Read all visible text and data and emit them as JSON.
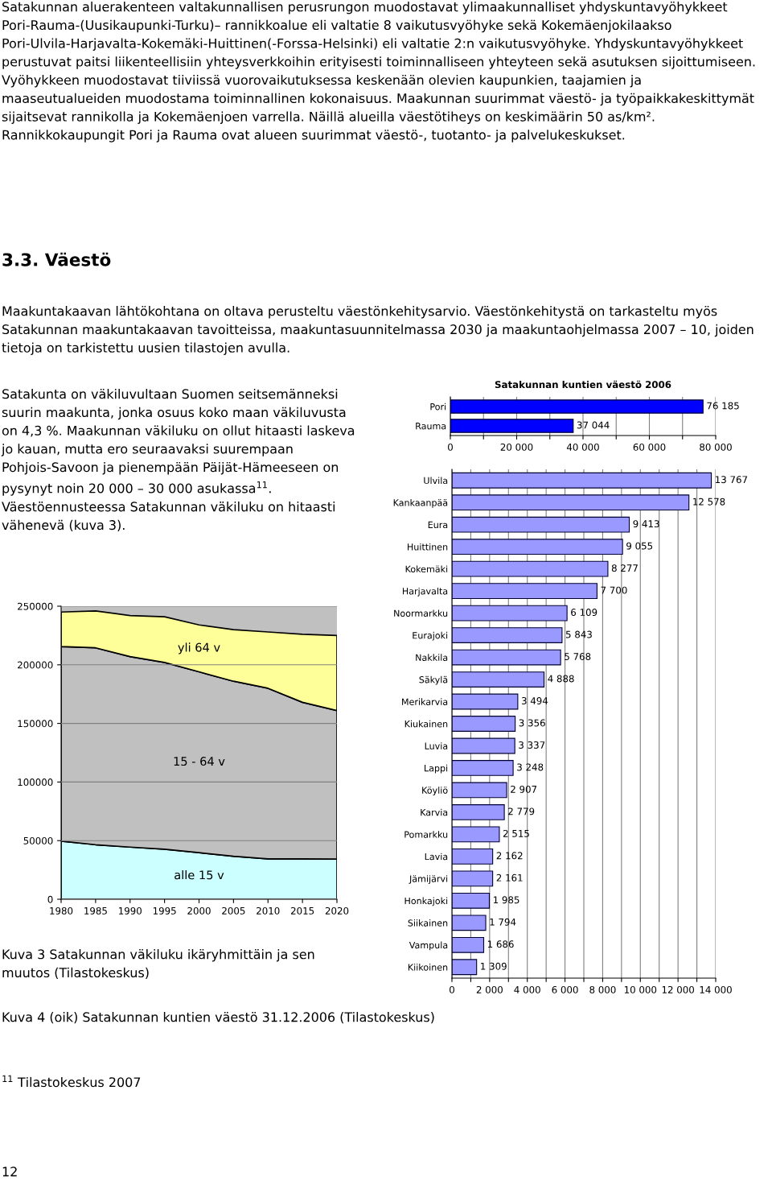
{
  "chart_data": [
    {
      "type": "other",
      "title": "3.3. Väestö",
      "annotations": [
        "Satakunnan aluerakenteen valtakunnallisen perusrungon muodostavat ylimaakunnalliset yhdyskuntavyöhykkeet Pori-Rauma-(Uusikaupunki-Turku)– rannikkoalue eli valtatie 8 vaikutusvyöhyke sekä Kokemäenjokilaakso Pori-Ulvila-Harjavalta-Kokemäki-Huittinen(-Forssa-Helsinki) eli valtatie 2:n vaikutusvyöhyke. Yhdyskuntavyöhykkeet perustuvat paitsi liikenteellisiin yhteysverkkoihin erityisesti toiminnalliseen yhteyteen sekä asutuksen sijoittumiseen. Vyöhykkeen muodostavat tiiviissä vuorovaikutuksessa keskenään olevien kaupunkien, taajamien ja maaseutualueiden muodostama toiminnallinen kokonaisuus. Maakunnan suurimmat väestö- ja työpaikkakeskittymät sijaitsevat rannikolla ja Kokemäenjoen varrella. Näillä alueilla väestötiheys on keskimäärin 50 as/km². Rannikkokaupungit Pori ja Rauma ovat alueen suurimmat väestö-, tuotanto- ja palvelukeskukset.",
        "Maakuntakaavan lähtökohtana on oltava perusteltu väestönkehitysarvio. Väestönkehitystä on tarkasteltu myös Satakunnan maakuntakaavan tavoitteissa, maakuntasuunnitelmassa 2030 ja maakuntaohjelmassa 2007 – 10, joiden tietoja on tarkistettu uusien tilastojen avulla.",
        "Satakunta on väkiluvultaan Suomen seitsemänneksi suurin maakunta, jonka osuus koko maan väkiluvusta on 4,3 %. Maakunnan väkiluku on ollut hitaasti laskeva jo kauan, mutta ero seuraavaksi suurempaan Pohjois-Savoon ja pienempään Päijät-Hämeeseen on pysynyt noin 20 000 – 30 000 asukassa$^{11}$. Väestöennusteessa Satakunnan väkiluku on hitaasti vähenevä (kuva 3).",
        "$^{11}$ Tilastokeskus 2007",
        "12"
      ]
    },
    {
      "type": "area",
      "stacked": true,
      "x": [
        1980,
        1985,
        1990,
        1995,
        2000,
        2005,
        2010,
        2015,
        2020
      ],
      "series": [
        {
          "name": "alle 15 v",
          "color": "#ccffff",
          "values": [
            49500,
            46500,
            44500,
            42700,
            39700,
            36700,
            34400,
            34400,
            34200
          ]
        },
        {
          "name": "15 - 64 v",
          "color": "#c0c0c0",
          "values": [
            166100,
            168000,
            162500,
            159300,
            154300,
            149300,
            145600,
            133600,
            126800
          ]
        },
        {
          "name": "yli 64 v",
          "color": "#ffff99",
          "values": [
            29400,
            31500,
            35000,
            39000,
            40000,
            44000,
            48000,
            58000,
            64000
          ]
        }
      ],
      "xlim": [
        1980,
        2020
      ],
      "xticks": [
        1980,
        1985,
        1990,
        1995,
        2000,
        2005,
        2010,
        2015,
        2020
      ],
      "ylim": [
        0,
        250000
      ],
      "yticks": [
        0,
        50000,
        100000,
        150000,
        200000,
        250000
      ],
      "grid": "y",
      "annotations": [
        "Kuva 3 Satakunnan väkiluku ikäryhmittäin ja sen muutos (Tilastokeskus)"
      ]
    },
    {
      "type": "bar",
      "orientation": "horizontal",
      "title": "Satakunnan kuntien väestö 2006",
      "categories": [
        "Pori",
        "Rauma"
      ],
      "values": [
        76185,
        37044
      ],
      "color": "#0000ff",
      "value_labels": [
        "76 185",
        "37 044"
      ],
      "xlim": [
        0,
        80000
      ],
      "xticks": [
        0,
        {
          "value": 10000,
          "label": null
        },
        {
          "value": 20000,
          "label": "20 000"
        },
        {
          "value": 30000,
          "label": null
        },
        {
          "value": 40000,
          "label": "40 000"
        },
        {
          "value": 50000,
          "label": null
        },
        {
          "value": 60000,
          "label": "60 000"
        },
        {
          "value": 70000,
          "label": null
        },
        {
          "value": 80000,
          "label": "80 000"
        }
      ],
      "grid": "x"
    },
    {
      "type": "bar",
      "orientation": "horizontal",
      "categories": [
        "Ulvila",
        "Kankaanpää",
        "Eura",
        "Huittinen",
        "Kokemäki",
        "Harjavalta",
        "Noormarkku",
        "Eurajoki",
        "Nakkila",
        "Säkylä",
        "Merikarvia",
        "Kiukainen",
        "Luvia",
        "Lappi",
        "Köyliö",
        "Karvia",
        "Pomarkku",
        "Lavia",
        "Jämijärvi",
        "Honkajoki",
        "Siikainen",
        "Vampula",
        "Kiikoinen"
      ],
      "values": [
        13767,
        12578,
        9413,
        9055,
        8277,
        7700,
        6109,
        5843,
        5768,
        4888,
        3494,
        3356,
        3337,
        3248,
        2907,
        2779,
        2515,
        2162,
        2161,
        1985,
        1794,
        1686,
        1309
      ],
      "color": "#9999ff",
      "value_labels": [
        "13 767",
        "12 578",
        "9 413",
        "9 055",
        "8 277",
        "7 700",
        "6 109",
        "5 843",
        "5 768",
        "4 888",
        "3 494",
        "3 356",
        "3 337",
        "3 248",
        "2 907",
        "2 779",
        "2 515",
        "2 162",
        "2 161",
        "1 985",
        "1 794",
        "1 686",
        "1 309"
      ],
      "xlim": [
        0,
        14000
      ],
      "xticks": [
        0,
        {
          "value": 1000,
          "label": null
        },
        {
          "value": 2000,
          "label": "2 000"
        },
        {
          "value": 3000,
          "label": null
        },
        {
          "value": 4000,
          "label": "4 000"
        },
        {
          "value": 5000,
          "label": null
        },
        {
          "value": 6000,
          "label": "6 000"
        },
        {
          "value": 7000,
          "label": null
        },
        {
          "value": 8000,
          "label": "8 000"
        },
        {
          "value": 9000,
          "label": null
        },
        {
          "value": 10000,
          "label": "10 000"
        },
        {
          "value": 11000,
          "label": null
        },
        {
          "value": 12000,
          "label": "12 000"
        },
        {
          "value": 13000,
          "label": null
        },
        {
          "value": 14000,
          "label": "14 000"
        }
      ],
      "grid": "x",
      "annotations": [
        "Kuva 4 (oik) Satakunnan kuntien väestö 31.12.2006 (Tilastokeskus)"
      ]
    }
  ]
}
